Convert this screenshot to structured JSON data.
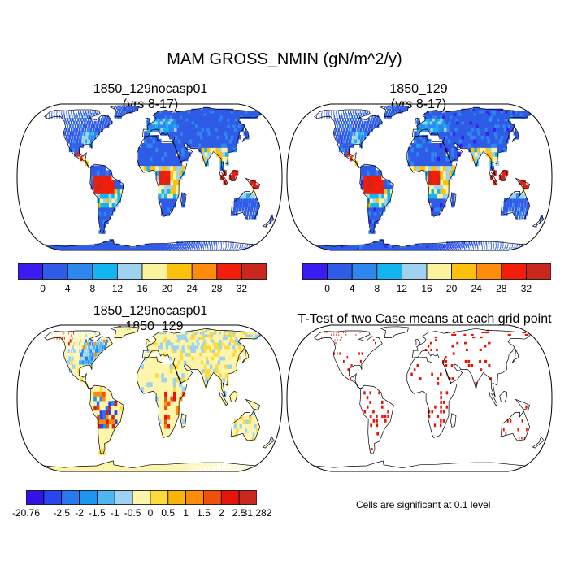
{
  "title": "MAM GROSS_NMIN (gN/m^2/y)",
  "panels": [
    {
      "title_line1": "1850_129nocasp01",
      "title_line2": "(yrs 8-17)",
      "kind": "field"
    },
    {
      "title_line1": "1850_129",
      "title_line2": "(yrs 8-17)",
      "kind": "field"
    },
    {
      "title_line1": "1850_129nocasp01",
      "title_line2": "- 1850_129",
      "kind": "diff"
    },
    {
      "title_line1": "T-Test of two Case means at each grid point",
      "title_line2": "",
      "kind": "ttest"
    }
  ],
  "colorbar_top": {
    "colors": [
      "#3b1cf0",
      "#2f5ce6",
      "#2f86ee",
      "#14b4ee",
      "#9ed2ee",
      "#fcf39e",
      "#fcc10c",
      "#fc8c0a",
      "#f01e0a",
      "#c8281e"
    ],
    "labels": [
      "0",
      "4",
      "8",
      "12",
      "16",
      "20",
      "24",
      "28",
      "32"
    ]
  },
  "colorbar_diff": {
    "colors": [
      "#3214e6",
      "#2846f0",
      "#2878f0",
      "#1e96f0",
      "#50b4f0",
      "#9ed2f0",
      "#fcf5aa",
      "#fcdc3c",
      "#fcb40a",
      "#fc8c0a",
      "#f0500a",
      "#e6140a",
      "#c8281e"
    ],
    "labels": [
      "-20.76",
      "-2.5",
      "-2",
      "-1.5",
      "-1",
      "-0.5",
      "0",
      "0.5",
      "1",
      "1.5",
      "2",
      "2.5",
      "31.282"
    ]
  },
  "note": "Cells are significant at 0.1 level"
}
